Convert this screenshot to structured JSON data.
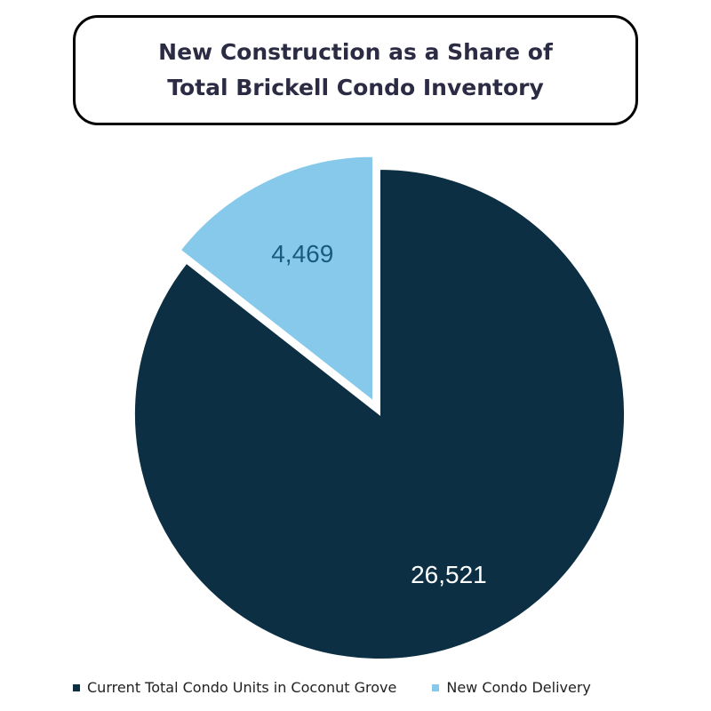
{
  "title": {
    "line1": "New Construction as a Share of",
    "line2": "Total Brickell Condo Inventory"
  },
  "colors": {
    "current": "#0c2f43",
    "new": "#87c9ea",
    "current_label": "#ffffff",
    "new_label": "#1a5a80"
  },
  "chart_data": {
    "type": "pie",
    "title": "New Construction as a Share of Total Brickell Condo Inventory",
    "slices": [
      {
        "name": "Current Total Condo Units in Coconut Grove",
        "value": 26521,
        "label": "26,521",
        "exploded": false
      },
      {
        "name": "New Condo Delivery",
        "value": 4469,
        "label": "4,469",
        "exploded": true
      }
    ],
    "legend_position": "bottom"
  }
}
